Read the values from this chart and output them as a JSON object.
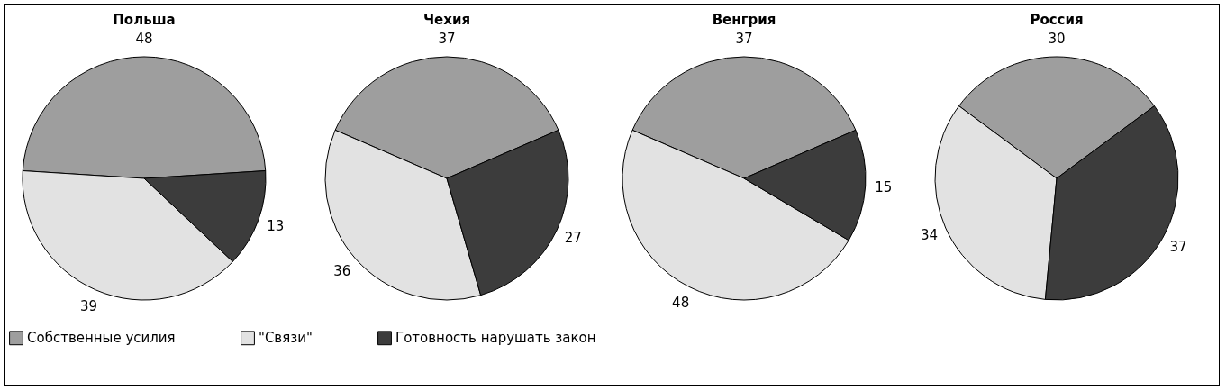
{
  "chart_data": [
    {
      "type": "pie",
      "title": "Польша",
      "categories": [
        "Собственные усилия",
        "\"Связи\"",
        "Готовность нарушать закон"
      ],
      "values": [
        48,
        39,
        13
      ],
      "colors": [
        "#9e9e9e",
        "#e2e2e2",
        "#3c3c3c"
      ],
      "data_labels": true,
      "legend": "bottom"
    },
    {
      "type": "pie",
      "title": "Чехия",
      "categories": [
        null,
        null,
        null
      ],
      "values": [
        37,
        36,
        27
      ],
      "colors": [
        "#9e9e9e",
        "#e2e2e2",
        "#3c3c3c"
      ],
      "data_labels": true
    },
    {
      "type": "pie",
      "title": "Венгрия",
      "categories": [
        null,
        null,
        null
      ],
      "values": [
        37,
        48,
        15
      ],
      "colors": [
        "#9e9e9e",
        "#e2e2e2",
        "#3c3c3c"
      ],
      "data_labels": true
    },
    {
      "type": "pie",
      "title": "Россия",
      "categories": [
        null,
        null,
        null
      ],
      "values": [
        30,
        34,
        37
      ],
      "colors": [
        "#9e9e9e",
        "#e2e2e2",
        "#3c3c3c"
      ],
      "data_labels": true
    }
  ]
}
